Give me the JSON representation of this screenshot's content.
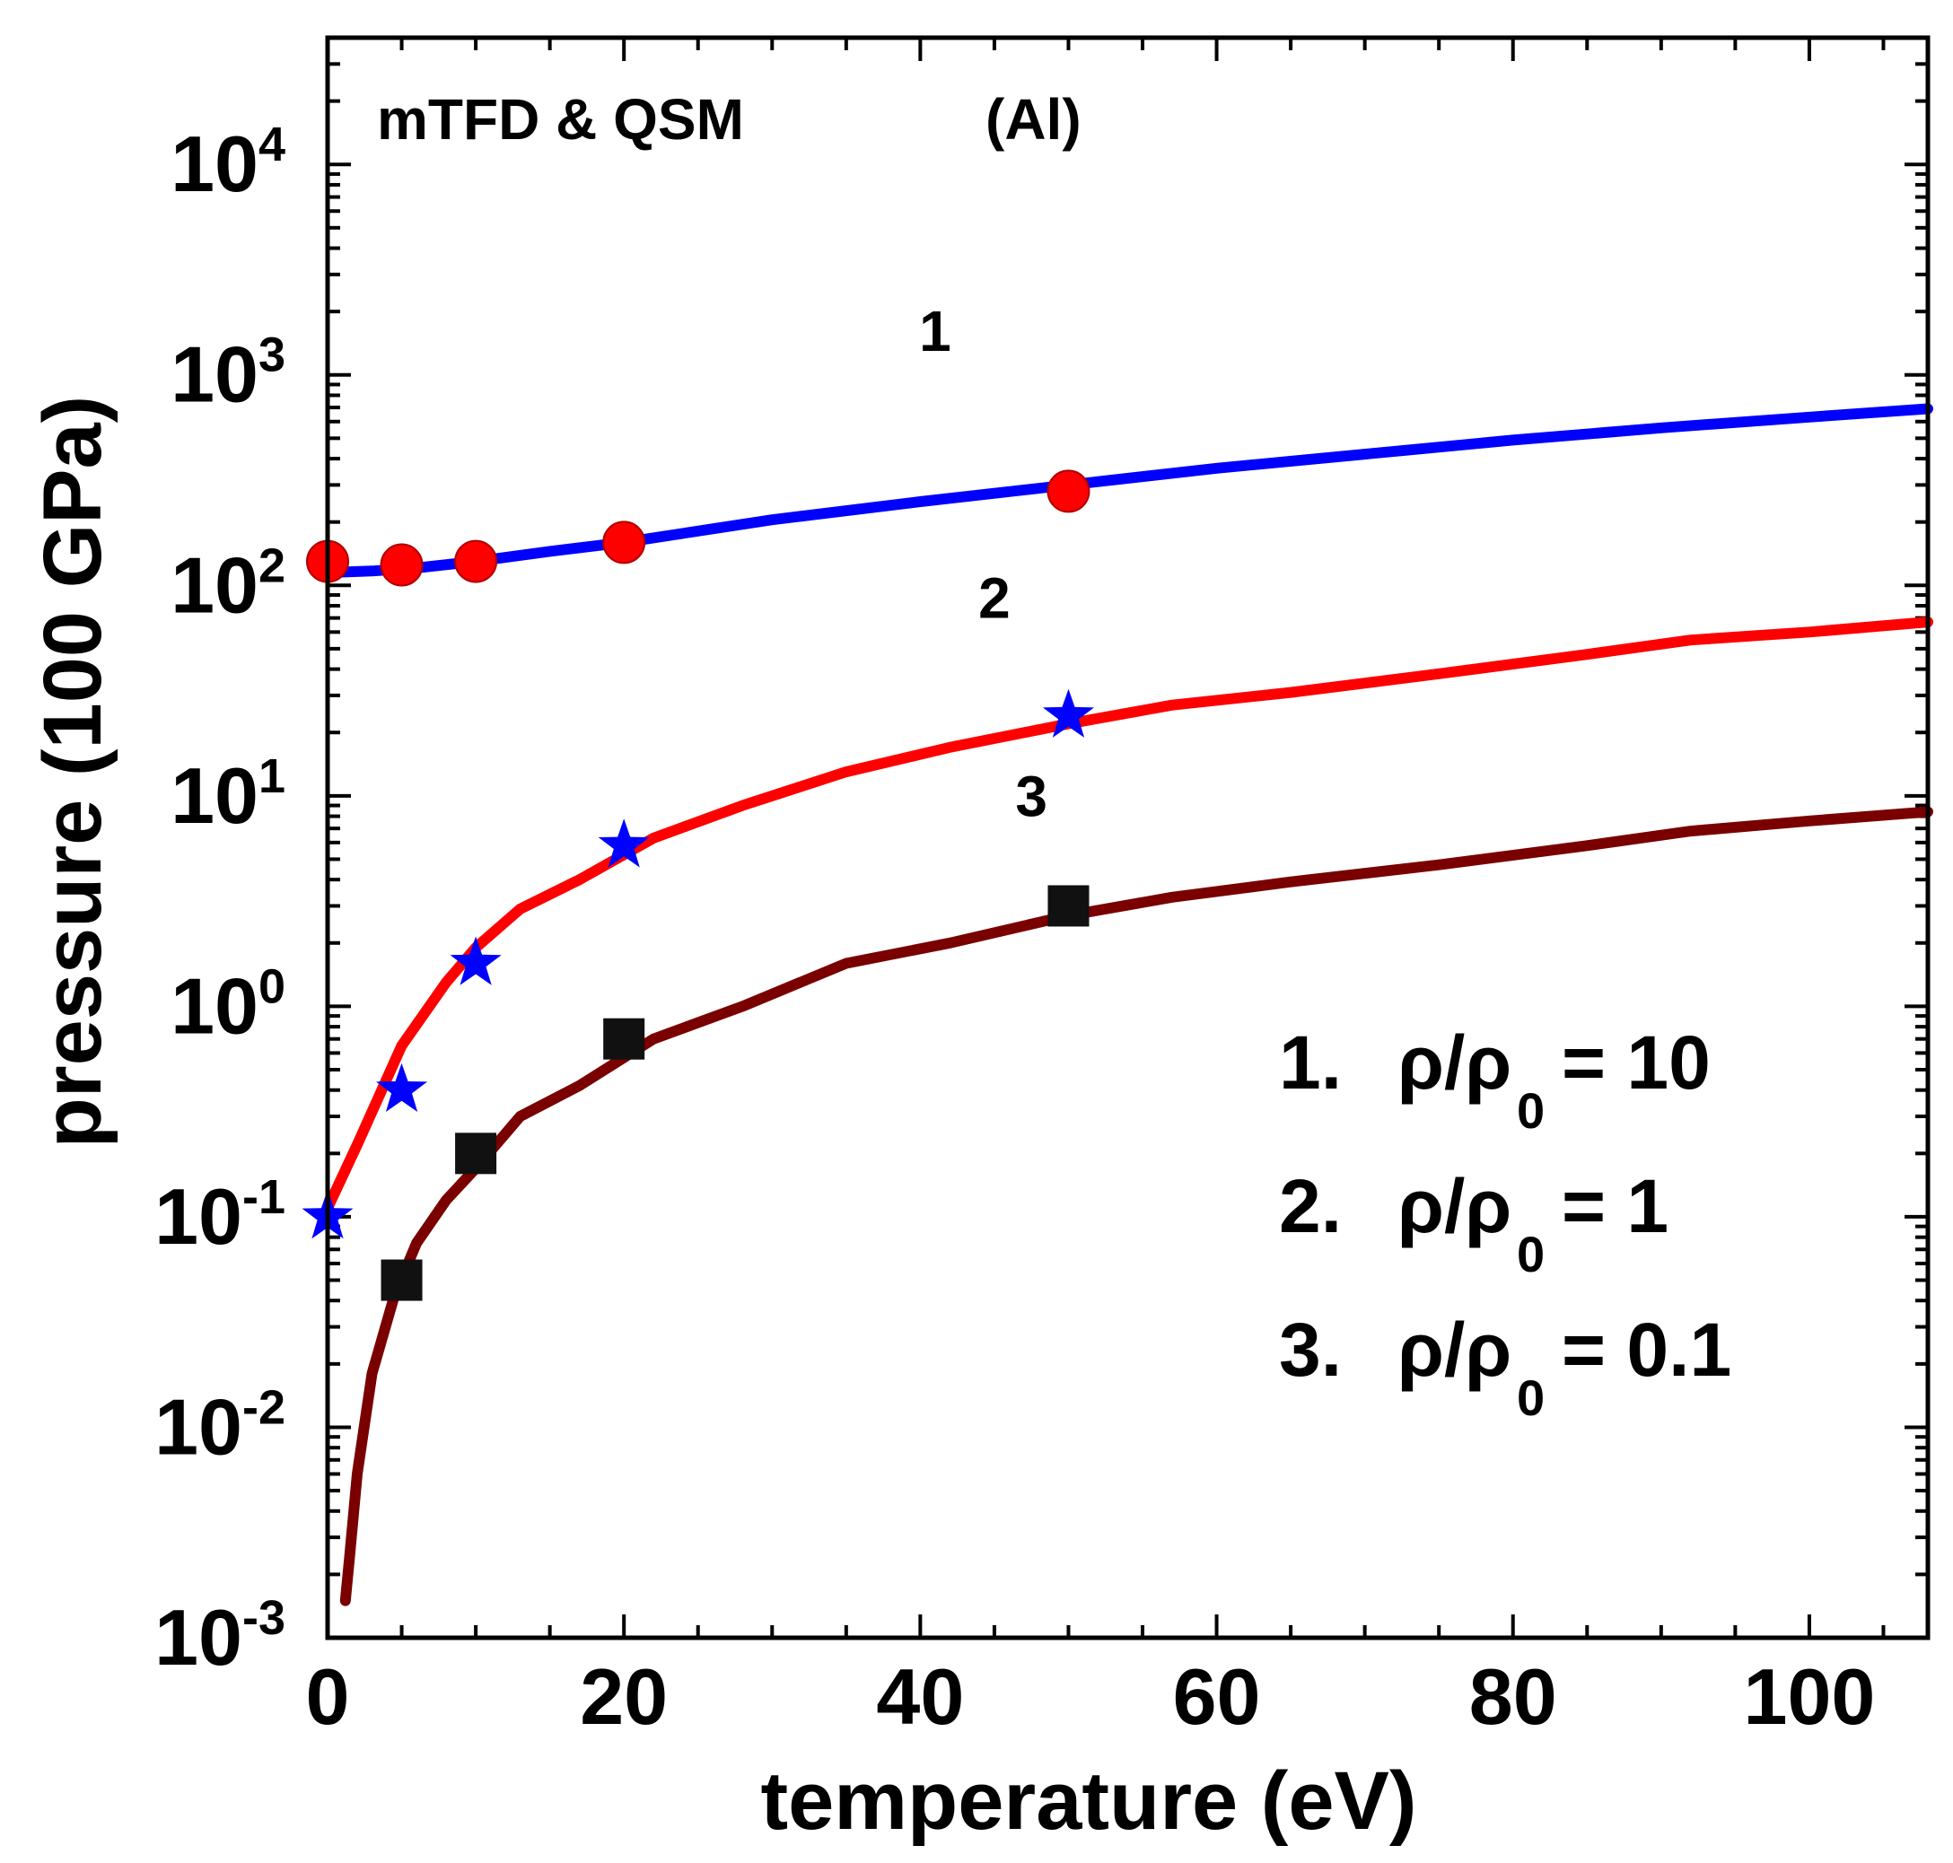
{
  "chart_data": {
    "type": "line",
    "title": "",
    "annotation_left": "mTFD & QSM",
    "annotation_right": "(Al)",
    "xlabel": "temperature (eV)",
    "ylabel": "pressure (100 GPa)",
    "xlim": [
      0,
      108
    ],
    "ylim": [
      0.001,
      40000
    ],
    "yscale": "log",
    "x_ticks": [
      0,
      20,
      40,
      60,
      80,
      100
    ],
    "x_tick_labels": [
      "0",
      "20",
      "40",
      "60",
      "80",
      "100"
    ],
    "y_ticks": [
      0.001,
      0.01,
      0.1,
      1,
      10,
      100,
      1000,
      10000
    ],
    "y_tick_labels": [
      {
        "base": "10",
        "exp": "-3"
      },
      {
        "base": "10",
        "exp": "-2"
      },
      {
        "base": "10",
        "exp": "-1"
      },
      {
        "base": "10",
        "exp": "0"
      },
      {
        "base": "10",
        "exp": "1"
      },
      {
        "base": "10",
        "exp": "2"
      },
      {
        "base": "10",
        "exp": "3"
      },
      {
        "base": "10",
        "exp": "4"
      }
    ],
    "series": [
      {
        "name": "1",
        "label": "1",
        "label_pos": [
          41,
          1300
        ],
        "color": "#0000ff",
        "x": [
          0,
          3,
          6,
          10,
          15,
          20,
          30,
          40,
          50,
          60,
          70,
          80,
          90,
          100,
          108
        ],
        "y": [
          115,
          117,
          121,
          130,
          145,
          160,
          205,
          250,
          300,
          360,
          420,
          490,
          560,
          630,
          690
        ]
      },
      {
        "name": "2",
        "label": "2",
        "label_pos": [
          45,
          70
        ],
        "color": "#ff0000",
        "x": [
          0,
          2,
          5,
          8,
          10,
          13,
          17,
          22,
          28,
          35,
          42,
          50,
          57,
          65,
          75,
          85,
          92,
          100,
          108
        ],
        "y": [
          0.11,
          0.22,
          0.65,
          1.3,
          1.9,
          2.9,
          4.0,
          6.3,
          9.0,
          13.0,
          17.0,
          22.0,
          27.0,
          31.0,
          38.0,
          47.0,
          55.0,
          60.0,
          67.0
        ]
      },
      {
        "name": "3",
        "label": "3",
        "label_pos": [
          47.5,
          8
        ],
        "color": "#7a0000",
        "x": [
          1.2,
          1.5,
          2.0,
          3.0,
          4.5,
          6.0,
          8.0,
          10.0,
          13.0,
          17.0,
          22.0,
          28.0,
          35.0,
          42.0,
          50.0,
          57.0,
          65.0,
          75.0,
          85.0,
          92.0,
          100.0,
          108.0
        ],
        "y": [
          0.0015,
          0.0025,
          0.006,
          0.018,
          0.042,
          0.075,
          0.12,
          0.17,
          0.3,
          0.42,
          0.7,
          1.0,
          1.6,
          2.0,
          2.7,
          3.3,
          3.9,
          4.7,
          5.8,
          6.8,
          7.6,
          8.4
        ]
      }
    ],
    "markers": [
      {
        "series": "1",
        "shape": "circle",
        "color": "#ff0000",
        "x": [
          0,
          5,
          10,
          20,
          50
        ],
        "y": [
          130,
          125,
          130,
          160,
          280
        ]
      },
      {
        "series": "2",
        "shape": "star",
        "color": "#0000ff",
        "x": [
          0,
          5,
          10,
          20,
          50
        ],
        "y": [
          0.1,
          0.4,
          1.6,
          5.8,
          24
        ]
      },
      {
        "series": "3",
        "shape": "square",
        "color": "#111111",
        "x": [
          5,
          10,
          20,
          50
        ],
        "y": [
          0.05,
          0.2,
          0.7,
          3.0
        ]
      }
    ],
    "legend": {
      "placement": "bottom-right",
      "entries": [
        {
          "num": "1.",
          "lhs": "ρ/ρ",
          "sub": "0",
          "rhs": "= 10"
        },
        {
          "num": "2.",
          "lhs": "ρ/ρ",
          "sub": "0",
          "rhs": "= 1"
        },
        {
          "num": "3.",
          "lhs": "ρ/ρ",
          "sub": "0",
          "rhs": "= 0.1"
        }
      ]
    }
  }
}
